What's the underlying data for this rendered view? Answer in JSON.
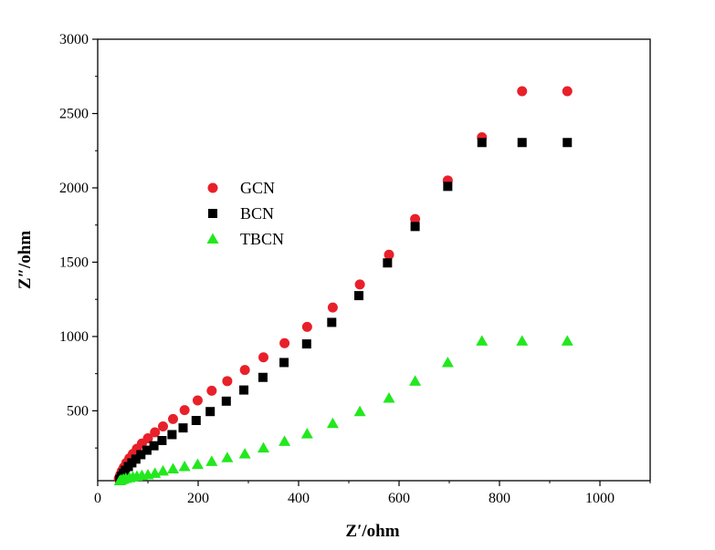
{
  "chart_data": {
    "type": "scatter",
    "xlabel": "Z′/ohm",
    "ylabel": "Z″/ohm",
    "xlim": [
      0,
      1100
    ],
    "ylim": [
      30,
      3000
    ],
    "x_ticks": [
      "0",
      "200",
      "400",
      "600",
      "800",
      "1000"
    ],
    "y_ticks": [
      "500",
      "1000",
      "1500",
      "2000",
      "2500",
      "3000"
    ],
    "legend_position": "upper-left-center",
    "series": [
      {
        "name": "GCN",
        "marker": "circle",
        "color": "#e8202a",
        "points": [
          [
            42,
            45
          ],
          [
            45,
            70
          ],
          [
            48,
            95
          ],
          [
            52,
            120
          ],
          [
            57,
            150
          ],
          [
            63,
            180
          ],
          [
            70,
            210
          ],
          [
            78,
            245
          ],
          [
            88,
            280
          ],
          [
            100,
            315
          ],
          [
            114,
            355
          ],
          [
            130,
            395
          ],
          [
            150,
            445
          ],
          [
            173,
            505
          ],
          [
            199,
            570
          ],
          [
            227,
            635
          ],
          [
            258,
            700
          ],
          [
            293,
            775
          ],
          [
            330,
            860
          ],
          [
            372,
            955
          ],
          [
            417,
            1065
          ],
          [
            468,
            1195
          ],
          [
            522,
            1350
          ],
          [
            580,
            1550
          ],
          [
            632,
            1790
          ],
          [
            697,
            2050
          ],
          [
            765,
            2340
          ],
          [
            845,
            2650
          ],
          [
            935,
            2650
          ]
        ]
      },
      {
        "name": "BCN",
        "marker": "square",
        "color": "#000000",
        "points": [
          [
            44,
            40
          ],
          [
            47,
            60
          ],
          [
            51,
            80
          ],
          [
            55,
            100
          ],
          [
            61,
            125
          ],
          [
            68,
            150
          ],
          [
            76,
            175
          ],
          [
            86,
            205
          ],
          [
            98,
            235
          ],
          [
            112,
            265
          ],
          [
            128,
            300
          ],
          [
            148,
            340
          ],
          [
            170,
            385
          ],
          [
            196,
            435
          ],
          [
            224,
            495
          ],
          [
            256,
            565
          ],
          [
            291,
            640
          ],
          [
            329,
            725
          ],
          [
            371,
            825
          ],
          [
            416,
            950
          ],
          [
            466,
            1095
          ],
          [
            520,
            1275
          ],
          [
            577,
            1495
          ],
          [
            632,
            1740
          ],
          [
            697,
            2010
          ],
          [
            765,
            2305
          ],
          [
            845,
            2305
          ],
          [
            935,
            2305
          ]
        ]
      },
      {
        "name": "TBCN",
        "marker": "triangle",
        "color": "#22e81e",
        "points": [
          [
            44,
            30
          ],
          [
            47,
            35
          ],
          [
            51,
            40
          ],
          [
            56,
            45
          ],
          [
            63,
            50
          ],
          [
            70,
            55
          ],
          [
            78,
            60
          ],
          [
            88,
            65
          ],
          [
            100,
            70
          ],
          [
            114,
            80
          ],
          [
            130,
            95
          ],
          [
            150,
            110
          ],
          [
            173,
            125
          ],
          [
            199,
            140
          ],
          [
            227,
            160
          ],
          [
            258,
            185
          ],
          [
            293,
            210
          ],
          [
            330,
            250
          ],
          [
            372,
            295
          ],
          [
            417,
            345
          ],
          [
            468,
            415
          ],
          [
            522,
            495
          ],
          [
            580,
            585
          ],
          [
            632,
            700
          ],
          [
            697,
            825
          ],
          [
            765,
            970
          ],
          [
            845,
            970
          ],
          [
            935,
            970
          ]
        ]
      }
    ]
  }
}
